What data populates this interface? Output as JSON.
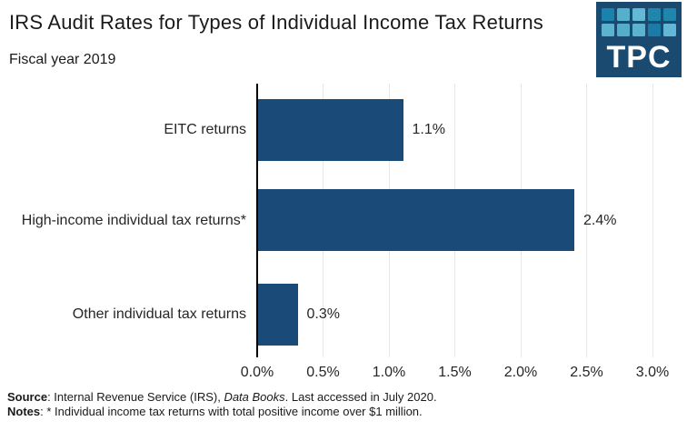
{
  "header": {
    "title": "IRS Audit Rates for Types of Individual Income Tax Returns",
    "subtitle": "Fiscal year 2019"
  },
  "logo": {
    "text": "TPC",
    "background": "#1a4a70",
    "grid_colors": [
      [
        "#1a82ad",
        "#55b0cc",
        "#63b8d4",
        "#1f86ae",
        "#1f86ae"
      ],
      [
        "#5cb3d0",
        "#54aecb",
        "#5cb3d0",
        "#1a7ca6",
        "#63b7d6"
      ]
    ]
  },
  "chart_data": {
    "type": "bar",
    "orientation": "horizontal",
    "title": "IRS Audit Rates for Types of Individual Income Tax Returns",
    "subtitle": "Fiscal year 2019",
    "categories": [
      "EITC returns",
      "High-income individual tax returns*",
      "Other individual tax returns"
    ],
    "values": [
      1.1,
      2.4,
      0.3
    ],
    "value_labels": [
      "1.1%",
      "2.4%",
      "0.3%"
    ],
    "xlabel": "",
    "ylabel": "",
    "xlim": [
      0.0,
      3.0
    ],
    "xticks": [
      0.0,
      0.5,
      1.0,
      1.5,
      2.0,
      2.5,
      3.0
    ],
    "xtick_labels": [
      "0.0%",
      "0.5%",
      "1.0%",
      "1.5%",
      "2.0%",
      "2.5%",
      "3.0%"
    ],
    "grid": true,
    "legend": "none",
    "bar_color": "#1a4a77",
    "gridline_color": "#e8e8e8",
    "axis_color": "#000000"
  },
  "footer": {
    "source_label": "Source",
    "source_text_1": ": Internal Revenue Service (IRS), ",
    "source_italic": "Data Books",
    "source_text_2": ". Last accessed in July 2020.",
    "notes_label": "Notes",
    "notes_text": ": * Individual income tax returns with total positive income over $1 million."
  }
}
